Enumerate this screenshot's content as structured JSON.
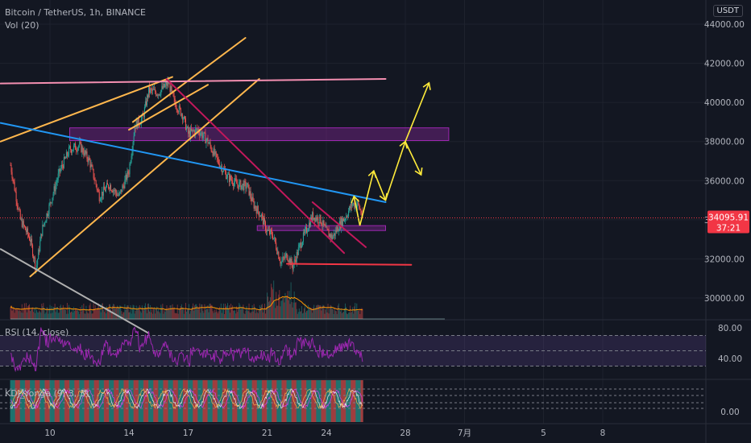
{
  "header": {
    "symbol_line": "Bitcoin / TetherUS, 1h, BINANCE",
    "volume_line": "Vol (20)",
    "currency": "USDT"
  },
  "price_axis": {
    "ticks": [
      "44000.00",
      "42000.00",
      "40000.00",
      "38000.00",
      "36000.00",
      "34000.00",
      "32000.00",
      "30000.00"
    ],
    "tick_values": [
      44000,
      42000,
      40000,
      38000,
      36000,
      34000,
      32000,
      30000
    ]
  },
  "last_price": {
    "value": "34095.91",
    "countdown": "37:21",
    "color": "#f23645"
  },
  "rsi": {
    "label": "RSI (14, close)",
    "ticks": [
      "80.00",
      "40.00"
    ]
  },
  "kdj": {
    "label": "KDJ_Yonga (9, 3, 3)",
    "ticks": [
      "0.00"
    ]
  },
  "time_axis": {
    "labels": [
      "10",
      "14",
      "17",
      "21",
      "24",
      "28",
      "7月",
      "5",
      "8"
    ]
  },
  "colors": {
    "background": "#131722",
    "up": "#26a69a",
    "down": "#ef5350",
    "rsi_line": "#9c27b0",
    "rsi_band": "#7e57c2",
    "volume_ma": "#ff9800",
    "trend_orange": "#ffb74d",
    "trend_pink": "#f48fb1",
    "trend_blue": "#2196f3",
    "trend_magenta": "#c2185b",
    "trend_red": "#f23645",
    "trend_gray": "#b0b0b0",
    "zone_purple": "#9c27b0",
    "projection_yellow": "#ffeb3b"
  },
  "chart_data": {
    "type": "candlestick",
    "symbol": "BTC/USDT",
    "interval": "1h",
    "y_range": [
      29100,
      44700
    ],
    "rsi_range": [
      20,
      90
    ],
    "price_path": [
      [
        8.0,
        36800
      ],
      [
        8.5,
        34000
      ],
      [
        9.0,
        33000
      ],
      [
        9.3,
        31500
      ],
      [
        9.6,
        33500
      ],
      [
        10.0,
        34800
      ],
      [
        10.5,
        36500
      ],
      [
        11.0,
        37600
      ],
      [
        11.5,
        37800
      ],
      [
        12.0,
        37000
      ],
      [
        12.5,
        35200
      ],
      [
        13.0,
        35800
      ],
      [
        13.5,
        35200
      ],
      [
        14.0,
        36500
      ],
      [
        14.3,
        38800
      ],
      [
        14.7,
        39200
      ],
      [
        15.0,
        40600
      ],
      [
        15.5,
        40500
      ],
      [
        16.0,
        41000
      ],
      [
        16.3,
        40000
      ],
      [
        16.7,
        39400
      ],
      [
        17.0,
        38400
      ],
      [
        17.5,
        38600
      ],
      [
        18.0,
        38000
      ],
      [
        18.5,
        37000
      ],
      [
        19.0,
        36200
      ],
      [
        19.5,
        35800
      ],
      [
        20.0,
        35700
      ],
      [
        20.3,
        34800
      ],
      [
        20.7,
        34200
      ],
      [
        21.0,
        33400
      ],
      [
        21.3,
        33200
      ],
      [
        21.7,
        31800
      ],
      [
        22.0,
        32200
      ],
      [
        22.3,
        31600
      ],
      [
        22.7,
        32800
      ],
      [
        23.0,
        33500
      ],
      [
        23.3,
        34200
      ],
      [
        23.7,
        34000
      ],
      [
        24.0,
        33400
      ],
      [
        24.3,
        33100
      ],
      [
        24.7,
        33800
      ],
      [
        25.0,
        34200
      ],
      [
        25.3,
        34800
      ],
      [
        25.6,
        34800
      ],
      [
        25.85,
        34100
      ]
    ],
    "trendlines": [
      {
        "color": "trend_orange",
        "points": [
          [
            7.5,
            38000
          ],
          [
            16.2,
            41300
          ]
        ]
      },
      {
        "color": "trend_orange",
        "points": [
          [
            14.0,
            38600
          ],
          [
            18.0,
            40900
          ]
        ]
      },
      {
        "color": "trend_orange",
        "points": [
          [
            14.2,
            39000
          ],
          [
            19.9,
            43300
          ]
        ]
      },
      {
        "color": "trend_orange",
        "points": [
          [
            9.0,
            31100
          ],
          [
            20.6,
            41200
          ]
        ]
      },
      {
        "color": "trend_pink",
        "points": [
          [
            7.5,
            40970
          ],
          [
            27.0,
            41200
          ]
        ]
      },
      {
        "color": "trend_blue",
        "points": [
          [
            7.5,
            38950
          ],
          [
            27.0,
            34900
          ]
        ]
      },
      {
        "color": "trend_magenta",
        "points": [
          [
            15.9,
            41200
          ],
          [
            24.9,
            32300
          ]
        ]
      },
      {
        "color": "trend_magenta",
        "points": [
          [
            23.3,
            34900
          ],
          [
            26.0,
            32600
          ]
        ]
      },
      {
        "color": "trend_red",
        "points": [
          [
            22.0,
            31750
          ],
          [
            28.3,
            31700
          ]
        ]
      },
      {
        "color": "trend_gray",
        "points": [
          [
            7.5,
            32500
          ],
          [
            15.0,
            28200
          ]
        ]
      }
    ],
    "zones": [
      {
        "x": [
          11.0,
          30.2
        ],
        "y": [
          38050,
          38700
        ]
      },
      {
        "x": [
          20.5,
          27.0
        ],
        "y": [
          33450,
          33700
        ]
      }
    ],
    "projection": [
      [
        25.7,
        33700
      ],
      [
        26.4,
        36500
      ],
      [
        27.0,
        35000
      ],
      [
        28.0,
        38000
      ],
      [
        28.8,
        36300
      ]
    ],
    "projection_alt": [
      [
        25.7,
        33700
      ],
      [
        25.4,
        35200
      ]
    ],
    "projection_up": [
      [
        28.0,
        38000
      ],
      [
        29.2,
        41000
      ]
    ],
    "x_ticks": [
      10,
      14,
      17,
      21,
      24,
      28,
      31,
      35,
      38
    ]
  }
}
